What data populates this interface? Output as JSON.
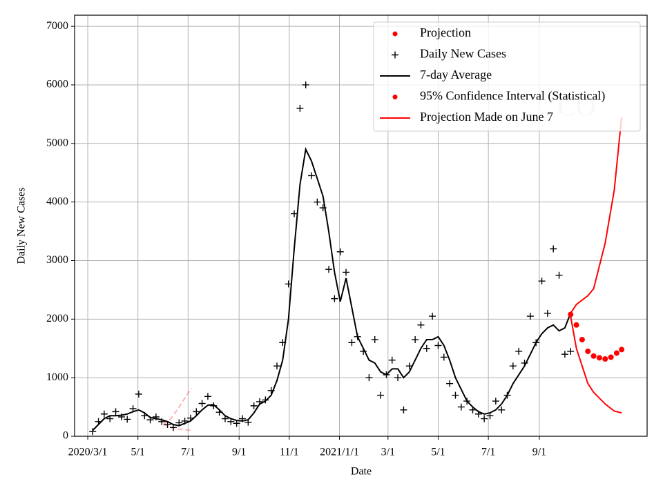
{
  "chart_data": {
    "type": "line",
    "x_label": "Date",
    "y_label": "Daily New Cases",
    "watermark": "CO",
    "xlim": [
      "2020-02-14",
      "2022-01-10"
    ],
    "ylim": [
      0,
      7190
    ],
    "xticks": [
      {
        "value": "2020-03-01",
        "label": "2020/3/1"
      },
      {
        "value": "2020-05-01",
        "label": "5/1"
      },
      {
        "value": "2020-07-01",
        "label": "7/1"
      },
      {
        "value": "2020-09-01",
        "label": "9/1"
      },
      {
        "value": "2020-11-01",
        "label": "11/1"
      },
      {
        "value": "2021-01-01",
        "label": "2021/1/1"
      },
      {
        "value": "2021-03-01",
        "label": "3/1"
      },
      {
        "value": "2021-05-01",
        "label": "5/1"
      },
      {
        "value": "2021-07-01",
        "label": "7/1"
      },
      {
        "value": "2021-09-01",
        "label": "9/1"
      }
    ],
    "yticks": [
      0,
      1000,
      2000,
      3000,
      4000,
      5000,
      6000,
      7000
    ],
    "grid": true,
    "legend": "upper right",
    "series": [
      {
        "name": "Projection",
        "color": "#ff0000",
        "style": "points",
        "legend_marker": "dot",
        "x": [
          "2021-10-09",
          "2021-10-16",
          "2021-10-23",
          "2021-10-30",
          "2021-11-06",
          "2021-11-13",
          "2021-11-20",
          "2021-11-27",
          "2021-12-04",
          "2021-12-10"
        ],
        "values": [
          2080,
          1900,
          1650,
          1450,
          1370,
          1340,
          1320,
          1350,
          1420,
          1480
        ]
      },
      {
        "name": "Daily New Cases",
        "color": "#000000",
        "style": "plus",
        "legend_marker": "plus",
        "x": [
          "2020-03-07",
          "2020-03-14",
          "2020-03-21",
          "2020-03-28",
          "2020-04-04",
          "2020-04-11",
          "2020-04-18",
          "2020-04-25",
          "2020-05-02",
          "2020-05-09",
          "2020-05-16",
          "2020-05-23",
          "2020-05-30",
          "2020-06-06",
          "2020-06-13",
          "2020-06-20",
          "2020-06-27",
          "2020-07-04",
          "2020-07-11",
          "2020-07-18",
          "2020-07-25",
          "2020-08-01",
          "2020-08-08",
          "2020-08-15",
          "2020-08-22",
          "2020-08-29",
          "2020-09-05",
          "2020-09-12",
          "2020-09-19",
          "2020-09-26",
          "2020-10-03",
          "2020-10-10",
          "2020-10-17",
          "2020-10-24",
          "2020-10-31",
          "2020-11-07",
          "2020-11-14",
          "2020-11-21",
          "2020-11-28",
          "2020-12-05",
          "2020-12-12",
          "2020-12-19",
          "2020-12-26",
          "2021-01-02",
          "2021-01-09",
          "2021-01-16",
          "2021-01-23",
          "2021-01-30",
          "2021-02-06",
          "2021-02-13",
          "2021-02-20",
          "2021-02-27",
          "2021-03-06",
          "2021-03-13",
          "2021-03-20",
          "2021-03-27",
          "2021-04-03",
          "2021-04-10",
          "2021-04-17",
          "2021-04-24",
          "2021-05-01",
          "2021-05-08",
          "2021-05-15",
          "2021-05-22",
          "2021-05-29",
          "2021-06-05",
          "2021-06-12",
          "2021-06-19",
          "2021-06-26",
          "2021-07-03",
          "2021-07-10",
          "2021-07-17",
          "2021-07-24",
          "2021-07-31",
          "2021-08-07",
          "2021-08-14",
          "2021-08-21",
          "2021-08-28",
          "2021-09-04",
          "2021-09-11",
          "2021-09-18",
          "2021-09-25",
          "2021-10-02",
          "2021-10-09"
        ],
        "values": [
          80,
          250,
          380,
          300,
          420,
          330,
          290,
          470,
          720,
          350,
          280,
          330,
          250,
          200,
          150,
          230,
          260,
          310,
          420,
          560,
          680,
          520,
          410,
          300,
          250,
          220,
          300,
          240,
          520,
          590,
          620,
          780,
          1200,
          1600,
          2600,
          3800,
          5600,
          6000,
          4450,
          4000,
          3900,
          2850,
          2350,
          3150,
          2800,
          1600,
          1700,
          1450,
          1000,
          1650,
          700,
          1050,
          1300,
          1000,
          450,
          1200,
          1650,
          1900,
          1500,
          2050,
          1550,
          1350,
          900,
          700,
          500,
          600,
          450,
          380,
          300,
          350,
          600,
          450,
          700,
          1200,
          1450,
          1250,
          2050,
          1600,
          2650,
          2100,
          3200,
          2750,
          1400,
          1450
        ]
      },
      {
        "name": "7-day Average",
        "color": "#000000",
        "style": "line",
        "legend_marker": "line",
        "x": [
          "2020-03-07",
          "2020-03-14",
          "2020-03-21",
          "2020-03-28",
          "2020-04-04",
          "2020-04-11",
          "2020-04-18",
          "2020-04-25",
          "2020-05-02",
          "2020-05-09",
          "2020-05-16",
          "2020-05-23",
          "2020-05-30",
          "2020-06-06",
          "2020-06-13",
          "2020-06-20",
          "2020-06-27",
          "2020-07-04",
          "2020-07-11",
          "2020-07-18",
          "2020-07-25",
          "2020-08-01",
          "2020-08-08",
          "2020-08-15",
          "2020-08-22",
          "2020-08-29",
          "2020-09-05",
          "2020-09-12",
          "2020-09-19",
          "2020-09-26",
          "2020-10-03",
          "2020-10-10",
          "2020-10-17",
          "2020-10-24",
          "2020-10-31",
          "2020-11-07",
          "2020-11-14",
          "2020-11-21",
          "2020-11-28",
          "2020-12-05",
          "2020-12-12",
          "2020-12-19",
          "2020-12-26",
          "2021-01-02",
          "2021-01-09",
          "2021-01-16",
          "2021-01-23",
          "2021-01-30",
          "2021-02-06",
          "2021-02-13",
          "2021-02-20",
          "2021-02-27",
          "2021-03-06",
          "2021-03-13",
          "2021-03-20",
          "2021-03-27",
          "2021-04-03",
          "2021-04-10",
          "2021-04-17",
          "2021-04-24",
          "2021-05-01",
          "2021-05-08",
          "2021-05-15",
          "2021-05-22",
          "2021-05-29",
          "2021-06-05",
          "2021-06-12",
          "2021-06-19",
          "2021-06-26",
          "2021-07-03",
          "2021-07-10",
          "2021-07-17",
          "2021-07-24",
          "2021-07-31",
          "2021-08-07",
          "2021-08-14",
          "2021-08-21",
          "2021-08-28",
          "2021-09-04",
          "2021-09-11",
          "2021-09-18",
          "2021-09-25",
          "2021-10-02",
          "2021-10-09"
        ],
        "values": [
          100,
          200,
          300,
          350,
          350,
          360,
          380,
          420,
          450,
          400,
          320,
          300,
          280,
          250,
          200,
          180,
          220,
          260,
          350,
          450,
          530,
          540,
          450,
          350,
          300,
          270,
          260,
          280,
          400,
          550,
          600,
          700,
          950,
          1300,
          2000,
          3200,
          4300,
          4900,
          4700,
          4400,
          4100,
          3500,
          2800,
          2300,
          2700,
          2200,
          1700,
          1500,
          1300,
          1250,
          1100,
          1050,
          1150,
          1150,
          1000,
          1100,
          1300,
          1500,
          1650,
          1650,
          1700,
          1550,
          1300,
          1000,
          800,
          600,
          500,
          420,
          380,
          400,
          450,
          550,
          700,
          900,
          1050,
          1200,
          1400,
          1600,
          1750,
          1850,
          1900,
          1800,
          1850,
          2100
        ]
      },
      {
        "name": "95% Confidence Interval (Statistical)",
        "color": "#ff0000",
        "style": "band",
        "legend_marker": "dot",
        "x": [
          "2021-10-09",
          "2021-10-16",
          "2021-10-30",
          "2021-11-06",
          "2021-11-20",
          "2021-12-01",
          "2021-12-10"
        ],
        "values": [
          2100,
          2250,
          2400,
          2520,
          3300,
          4200,
          5450
        ],
        "lower": [
          2050,
          1500,
          900,
          750,
          550,
          430,
          400
        ]
      },
      {
        "name": "Projection Made on June 7",
        "color": "#ff0000",
        "style": "band-dashed",
        "legend_marker": "line",
        "x": [
          "2020-06-01",
          "2020-06-10",
          "2020-06-20",
          "2020-07-05"
        ],
        "values": [
          200,
          300,
          500,
          820
        ],
        "lower": [
          200,
          150,
          120,
          100
        ]
      }
    ]
  }
}
